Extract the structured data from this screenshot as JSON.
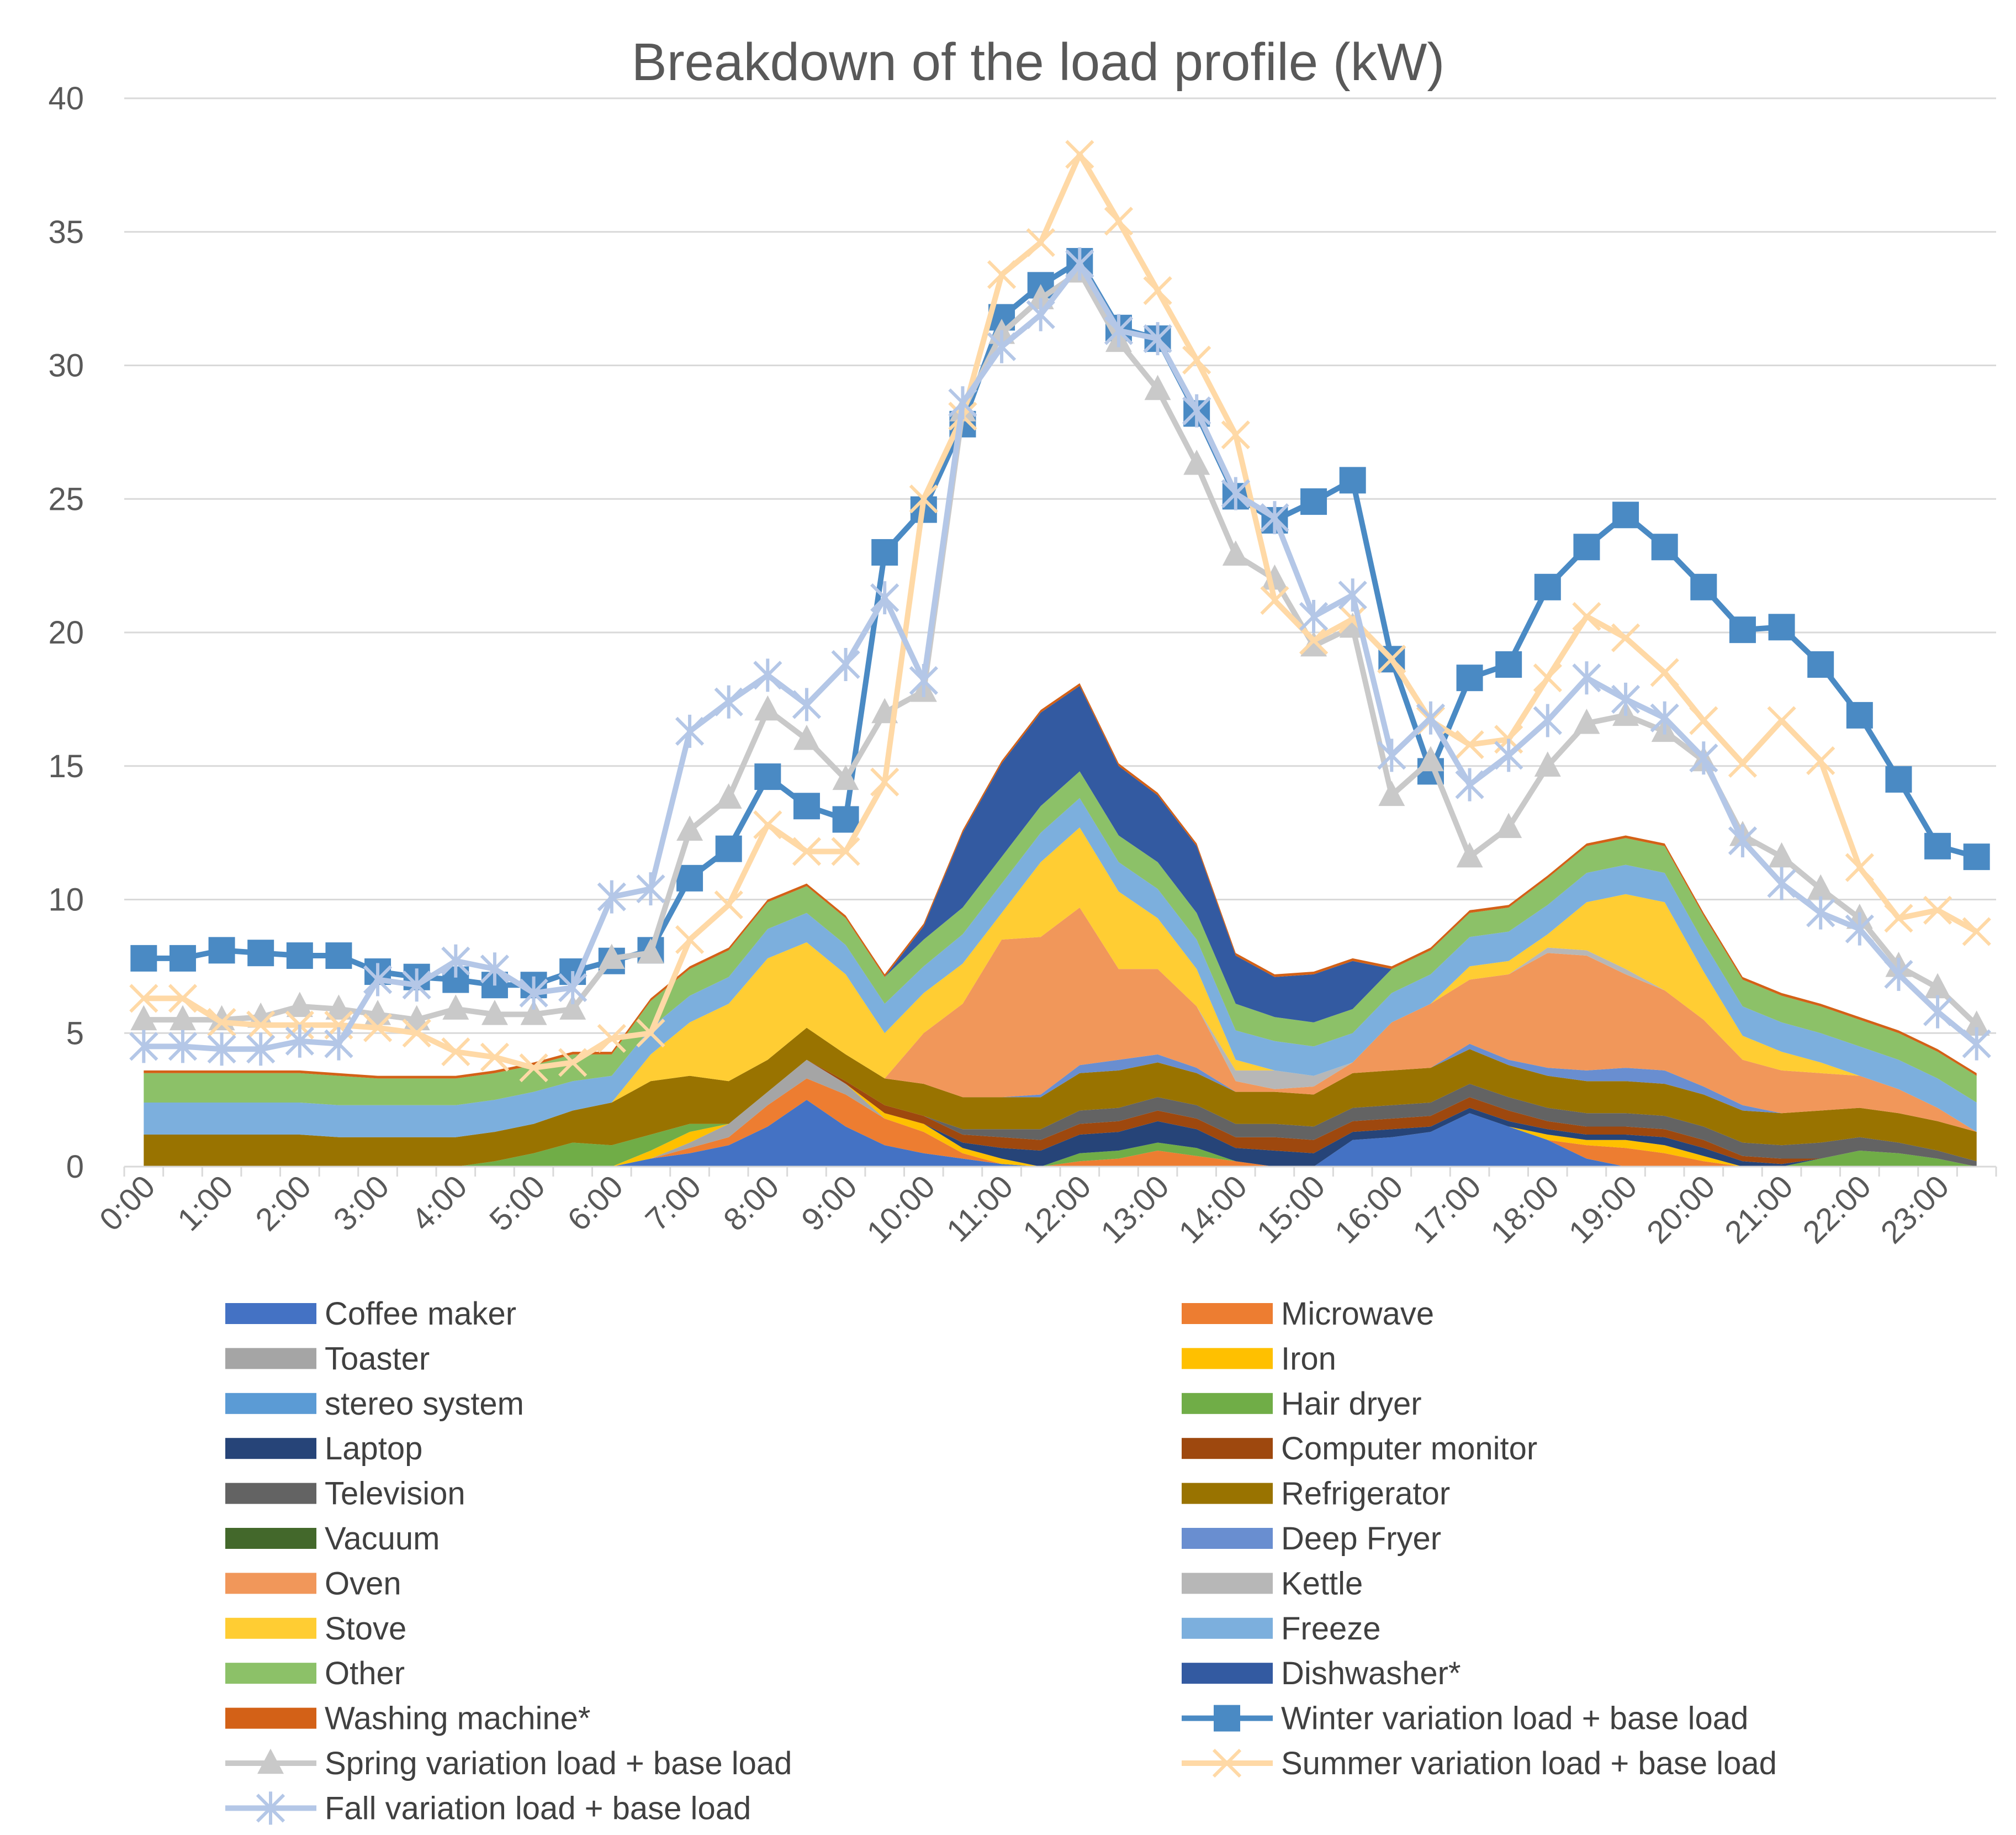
{
  "chart_data": {
    "type": "area",
    "title": "Breakdown of the load profile (kW)",
    "xlabel": "",
    "ylabel": "",
    "ylim": [
      0,
      40
    ],
    "yticks": [
      0,
      5,
      10,
      15,
      20,
      25,
      30,
      35,
      40
    ],
    "grid": true,
    "x_tick_labels": [
      "0:00",
      "1:00",
      "2:00",
      "3:00",
      "4:00",
      "5:00",
      "6:00",
      "7:00",
      "8:00",
      "9:00",
      "10:00",
      "11:00",
      "12:00",
      "13:00",
      "14:00",
      "15:00",
      "16:00",
      "17:00",
      "18:00",
      "19:00",
      "20:00",
      "21:00",
      "22:00",
      "23:00"
    ],
    "points_per_hour": 2,
    "n_points": 48,
    "legend_position": "bottom",
    "stacked_series": [
      {
        "name": "Coffee maker",
        "color": "#4472C4",
        "values": [
          0,
          0,
          0,
          0,
          0,
          0,
          0,
          0,
          0,
          0,
          0,
          0,
          0,
          0.3,
          0.5,
          0.8,
          1.5,
          2.5,
          1.5,
          0.8,
          0.5,
          0.3,
          0.1,
          0,
          0,
          0,
          0,
          0,
          0,
          0,
          0,
          1.0,
          1.1,
          1.3,
          2.0,
          1.5,
          1.0,
          0.3,
          0,
          0,
          0,
          0,
          0,
          0,
          0,
          0,
          0,
          0
        ]
      },
      {
        "name": "Microwave",
        "color": "#ED7D31",
        "values": [
          0,
          0,
          0,
          0,
          0,
          0,
          0,
          0,
          0,
          0,
          0,
          0,
          0,
          0,
          0.2,
          0.3,
          0.8,
          0.8,
          1.2,
          1.0,
          0.8,
          0.2,
          0,
          0,
          0.2,
          0.3,
          0.6,
          0.4,
          0.2,
          0,
          0,
          0,
          0,
          0,
          0,
          0,
          0,
          0.5,
          0.7,
          0.5,
          0.2,
          0,
          0,
          0,
          0,
          0,
          0,
          0
        ]
      },
      {
        "name": "Toaster",
        "color": "#A5A5A5",
        "values": [
          0,
          0,
          0,
          0,
          0,
          0,
          0,
          0,
          0,
          0,
          0,
          0,
          0,
          0,
          0.2,
          0.5,
          0.5,
          0.7,
          0.4,
          0,
          0,
          0,
          0,
          0,
          0,
          0,
          0,
          0,
          0,
          0,
          0,
          0,
          0,
          0,
          0,
          0,
          0,
          0,
          0,
          0,
          0,
          0,
          0,
          0,
          0,
          0,
          0,
          0
        ]
      },
      {
        "name": "Iron",
        "color": "#FFC000",
        "values": [
          0,
          0,
          0,
          0,
          0,
          0,
          0,
          0,
          0,
          0,
          0,
          0,
          0,
          0.3,
          0.4,
          0,
          0,
          0,
          0,
          0.2,
          0.3,
          0.2,
          0.2,
          0,
          0,
          0,
          0,
          0,
          0,
          0,
          0,
          0,
          0,
          0,
          0,
          0,
          0.2,
          0.2,
          0.3,
          0.3,
          0.2,
          0,
          0,
          0,
          0,
          0,
          0,
          0
        ]
      },
      {
        "name": "stereo system",
        "color": "#5B9BD5",
        "values": [
          0,
          0,
          0,
          0,
          0,
          0,
          0,
          0,
          0,
          0,
          0,
          0,
          0,
          0,
          0,
          0,
          0,
          0,
          0,
          0,
          0,
          0,
          0,
          0,
          0,
          0,
          0,
          0,
          0,
          0,
          0,
          0,
          0,
          0,
          0,
          0,
          0,
          0,
          0,
          0,
          0,
          0,
          0,
          0,
          0,
          0,
          0,
          0
        ]
      },
      {
        "name": "Hair dryer",
        "color": "#70AD47",
        "values": [
          0,
          0,
          0,
          0,
          0,
          0,
          0,
          0,
          0,
          0.2,
          0.5,
          0.9,
          0.8,
          0.6,
          0.3,
          0,
          0,
          0,
          0,
          0,
          0,
          0,
          0,
          0,
          0.3,
          0.3,
          0.3,
          0.3,
          0,
          0,
          0,
          0,
          0,
          0,
          0,
          0,
          0,
          0,
          0,
          0,
          0,
          0,
          0,
          0.3,
          0.6,
          0.5,
          0.3,
          0
        ]
      },
      {
        "name": "Laptop",
        "color": "#264478",
        "values": [
          0,
          0,
          0,
          0,
          0,
          0,
          0,
          0,
          0,
          0,
          0,
          0,
          0,
          0,
          0,
          0,
          0,
          0,
          0,
          0,
          0,
          0.2,
          0.4,
          0.6,
          0.7,
          0.7,
          0.8,
          0.7,
          0.5,
          0.6,
          0.5,
          0.3,
          0.3,
          0.2,
          0.2,
          0.2,
          0.2,
          0.2,
          0.2,
          0.3,
          0.3,
          0.2,
          0.1,
          0,
          0,
          0,
          0,
          0
        ]
      },
      {
        "name": "Computer monitor",
        "color": "#9E480E",
        "values": [
          0,
          0,
          0,
          0,
          0,
          0,
          0,
          0,
          0,
          0,
          0,
          0,
          0,
          0,
          0,
          0,
          0,
          0,
          0.1,
          0.3,
          0.3,
          0.3,
          0.4,
          0.4,
          0.4,
          0.4,
          0.4,
          0.4,
          0.4,
          0.5,
          0.5,
          0.4,
          0.4,
          0.4,
          0.4,
          0.4,
          0.3,
          0.3,
          0.3,
          0.3,
          0.3,
          0.2,
          0.2,
          0,
          0,
          0,
          0,
          0
        ]
      },
      {
        "name": "Television",
        "color": "#636363",
        "values": [
          0,
          0,
          0,
          0,
          0,
          0,
          0,
          0,
          0,
          0,
          0,
          0,
          0,
          0,
          0,
          0,
          0,
          0,
          0,
          0,
          0,
          0.2,
          0.3,
          0.4,
          0.5,
          0.5,
          0.5,
          0.5,
          0.5,
          0.5,
          0.5,
          0.5,
          0.5,
          0.5,
          0.5,
          0.5,
          0.5,
          0.5,
          0.5,
          0.5,
          0.5,
          0.5,
          0.5,
          0.6,
          0.5,
          0.4,
          0.3,
          0.2
        ]
      },
      {
        "name": "Refrigerator",
        "color": "#997300",
        "values": [
          1.2,
          1.2,
          1.2,
          1.2,
          1.2,
          1.1,
          1.1,
          1.1,
          1.1,
          1.1,
          1.1,
          1.2,
          1.6,
          2.0,
          1.8,
          1.6,
          1.2,
          1.2,
          1.0,
          1.0,
          1.2,
          1.2,
          1.2,
          1.2,
          1.4,
          1.4,
          1.3,
          1.2,
          1.2,
          1.2,
          1.2,
          1.3,
          1.3,
          1.3,
          1.3,
          1.2,
          1.2,
          1.2,
          1.2,
          1.2,
          1.2,
          1.2,
          1.2,
          1.2,
          1.1,
          1.1,
          1.1,
          1.1
        ]
      },
      {
        "name": "Vacuum",
        "color": "#43682B",
        "values": [
          0,
          0,
          0,
          0,
          0,
          0,
          0,
          0,
          0,
          0,
          0,
          0,
          0,
          0,
          0,
          0,
          0,
          0,
          0,
          0,
          0,
          0,
          0,
          0,
          0,
          0,
          0,
          0,
          0,
          0,
          0,
          0,
          0,
          0,
          0,
          0,
          0,
          0,
          0,
          0,
          0,
          0,
          0,
          0,
          0,
          0,
          0,
          0
        ]
      },
      {
        "name": "Deep Fryer",
        "color": "#698ED0",
        "values": [
          0,
          0,
          0,
          0,
          0,
          0,
          0,
          0,
          0,
          0,
          0,
          0,
          0,
          0,
          0,
          0,
          0,
          0,
          0,
          0,
          0,
          0,
          0,
          0.1,
          0.3,
          0.4,
          0.3,
          0.2,
          0,
          0,
          0,
          0,
          0,
          0,
          0.2,
          0.2,
          0.3,
          0.4,
          0.5,
          0.5,
          0.3,
          0.2,
          0,
          0,
          0,
          0,
          0,
          0
        ]
      },
      {
        "name": "Oven",
        "color": "#F1975A",
        "values": [
          0,
          0,
          0,
          0,
          0,
          0,
          0,
          0,
          0,
          0,
          0,
          0,
          0,
          0,
          0,
          0,
          0,
          0,
          0,
          0,
          1.9,
          3.5,
          5.9,
          5.9,
          5.9,
          3.4,
          3.2,
          2.3,
          0.4,
          0.1,
          0.3,
          0.4,
          1.8,
          2.4,
          2.4,
          3.2,
          4.3,
          4.3,
          3.5,
          3.0,
          2.5,
          1.7,
          1.6,
          1.4,
          1.2,
          0.9,
          0.5,
          0
        ]
      },
      {
        "name": "Kettle",
        "color": "#B7B7B7",
        "values": [
          0,
          0,
          0,
          0,
          0,
          0,
          0,
          0,
          0,
          0,
          0,
          0,
          0,
          0,
          0,
          0,
          0,
          0,
          0,
          0,
          0,
          0,
          0,
          0,
          0,
          0,
          0,
          0,
          0.4,
          0.7,
          0.4,
          0,
          0,
          0,
          0,
          0,
          0.2,
          0.2,
          0.2,
          0,
          0,
          0,
          0,
          0,
          0,
          0,
          0,
          0
        ]
      },
      {
        "name": "Stove",
        "color": "#FFCD33",
        "values": [
          0,
          0,
          0,
          0,
          0,
          0,
          0,
          0,
          0,
          0,
          0,
          0,
          0,
          1.0,
          2.0,
          2.9,
          3.8,
          3.2,
          3.0,
          1.7,
          1.5,
          1.5,
          1.0,
          2.8,
          3.0,
          2.9,
          1.9,
          1.4,
          0.4,
          0,
          0,
          0,
          0,
          0,
          0.5,
          0.5,
          0.5,
          1.8,
          2.8,
          3.3,
          1.8,
          0.9,
          0.7,
          0.4,
          0,
          0,
          0,
          0
        ]
      },
      {
        "name": "Freeze",
        "color": "#7CAFDD",
        "values": [
          1.2,
          1.2,
          1.2,
          1.2,
          1.2,
          1.2,
          1.2,
          1.2,
          1.2,
          1.2,
          1.2,
          1.1,
          1.0,
          1.0,
          1.0,
          1.0,
          1.1,
          1.1,
          1.1,
          1.1,
          1.0,
          1.1,
          1.1,
          1.1,
          1.1,
          1.1,
          1.1,
          1.1,
          1.1,
          1.1,
          1.1,
          1.1,
          1.1,
          1.1,
          1.1,
          1.1,
          1.1,
          1.1,
          1.1,
          1.1,
          1.1,
          1.1,
          1.1,
          1.1,
          1.1,
          1.1,
          1.1,
          1.1
        ]
      },
      {
        "name": "Other",
        "color": "#8CC168",
        "values": [
          1.1,
          1.1,
          1.1,
          1.1,
          1.1,
          1.1,
          1.0,
          1.0,
          1.0,
          1.0,
          1.0,
          1.0,
          0.8,
          1.0,
          1.0,
          1.0,
          1.0,
          1.0,
          1.0,
          1.0,
          1.0,
          1.0,
          1.0,
          1.0,
          1.0,
          1.0,
          1.0,
          1.0,
          1.0,
          0.9,
          0.9,
          0.9,
          0.9,
          0.9,
          0.9,
          0.9,
          1.0,
          1.0,
          1.0,
          1.0,
          1.0,
          1.0,
          1.0,
          1.0,
          1.0,
          1.0,
          1.0,
          1.0
        ]
      },
      {
        "name": "Dishwasher*",
        "color": "#335AA1",
        "values": [
          0,
          0,
          0,
          0,
          0,
          0,
          0,
          0,
          0,
          0,
          0,
          0,
          0,
          0,
          0,
          0,
          0,
          0,
          0,
          0,
          0.5,
          2.8,
          3.5,
          3.5,
          3.2,
          2.6,
          2.5,
          2.5,
          1.8,
          1.5,
          1.8,
          1.8,
          0,
          0,
          0,
          0,
          0,
          0,
          0,
          0,
          0,
          0,
          0,
          0,
          0,
          0,
          0,
          0
        ]
      },
      {
        "name": "Washing machine*",
        "color": "#D36117",
        "values": [
          0.1,
          0.1,
          0.1,
          0.1,
          0.1,
          0.1,
          0.1,
          0.1,
          0.1,
          0.1,
          0.1,
          0.1,
          0.1,
          0.1,
          0.1,
          0.1,
          0.1,
          0.1,
          0.1,
          0.1,
          0.1,
          0.1,
          0.1,
          0.1,
          0.1,
          0.1,
          0.1,
          0.1,
          0.1,
          0.1,
          0.1,
          0.1,
          0.1,
          0.1,
          0.1,
          0.1,
          0.1,
          0.1,
          0.1,
          0.1,
          0.1,
          0.1,
          0.1,
          0.1,
          0.1,
          0.1,
          0.1,
          0.1
        ]
      }
    ],
    "line_series": [
      {
        "name": "Winter variation load + base load",
        "color": "#4A8AC4",
        "marker": "square",
        "values": [
          7.8,
          7.8,
          8.1,
          8.0,
          7.9,
          7.9,
          7.3,
          7.1,
          7.0,
          6.8,
          6.8,
          7.3,
          7.7,
          8.1,
          10.8,
          11.9,
          14.6,
          13.5,
          13.0,
          23.0,
          24.6,
          27.8,
          31.8,
          33.0,
          33.9,
          31.4,
          31.0,
          28.2,
          25.1,
          24.2,
          24.9,
          25.7,
          19.0,
          14.8,
          18.3,
          18.8,
          21.7,
          23.2,
          24.4,
          23.2,
          21.7,
          20.1,
          20.2,
          18.8,
          16.9,
          14.5,
          12.0,
          11.6
        ]
      },
      {
        "name": "Spring variation load + base load",
        "color": "#C9C9C9",
        "marker": "triangle",
        "values": [
          5.5,
          5.5,
          5.5,
          5.6,
          6.0,
          5.9,
          5.7,
          5.5,
          5.9,
          5.7,
          5.7,
          5.9,
          7.8,
          8.0,
          12.6,
          13.8,
          17.1,
          16.0,
          14.5,
          17.0,
          17.8,
          28.3,
          31.2,
          32.5,
          33.5,
          30.9,
          29.1,
          26.3,
          22.9,
          22.0,
          19.5,
          20.2,
          13.9,
          15.2,
          11.6,
          12.7,
          15.0,
          16.6,
          16.9,
          16.3,
          15.2,
          12.4,
          11.6,
          10.4,
          9.3,
          7.5,
          6.7,
          5.3
        ]
      },
      {
        "name": "Summer variation load + base load",
        "color": "#FFD9A6",
        "marker": "x",
        "values": [
          6.3,
          6.3,
          5.4,
          5.3,
          5.3,
          5.3,
          5.2,
          5.0,
          4.3,
          4.1,
          3.7,
          3.9,
          4.8,
          5.0,
          8.5,
          9.8,
          12.8,
          11.8,
          11.8,
          14.4,
          25.0,
          28.1,
          33.4,
          34.6,
          37.9,
          35.4,
          32.8,
          30.2,
          27.4,
          21.2,
          19.7,
          20.5,
          19.0,
          16.7,
          15.8,
          16.0,
          18.3,
          20.6,
          19.8,
          18.5,
          16.7,
          15.1,
          16.7,
          15.2,
          11.2,
          9.3,
          9.6,
          8.8
        ]
      },
      {
        "name": "Fall variation load + base load",
        "color": "#B4C7E7",
        "marker": "star",
        "values": [
          4.5,
          4.5,
          4.4,
          4.4,
          4.7,
          4.6,
          7.0,
          6.8,
          7.7,
          7.4,
          6.5,
          6.7,
          10.1,
          10.4,
          16.3,
          17.4,
          18.4,
          17.3,
          18.8,
          21.3,
          18.2,
          28.6,
          30.7,
          31.9,
          33.8,
          31.3,
          31.0,
          28.3,
          25.2,
          24.3,
          20.6,
          21.4,
          15.4,
          16.8,
          14.3,
          15.4,
          16.7,
          18.3,
          17.5,
          16.8,
          15.3,
          12.2,
          10.6,
          9.5,
          8.9,
          7.2,
          5.8,
          4.6
        ]
      }
    ]
  }
}
